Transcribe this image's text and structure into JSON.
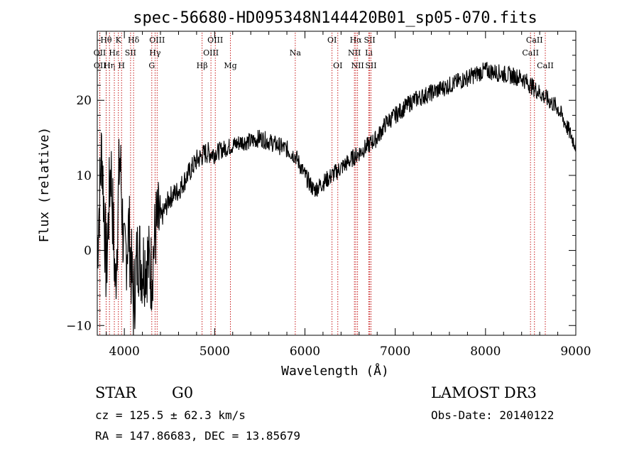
{
  "chart_data": {
    "type": "line",
    "title": "spec-56680-HD095348N144420B01_sp05-070.fits",
    "xlabel": "Wavelength (Å)",
    "ylabel": "Flux (relative)",
    "xlim": [
      3700,
      9000
    ],
    "ylim": [
      -11.3,
      29.2
    ],
    "xticks": [
      4000,
      5000,
      6000,
      7000,
      8000,
      9000
    ],
    "xtick_labels": [
      "4000",
      "5000",
      "6000",
      "7000",
      "8000",
      "9000"
    ],
    "yticks": [
      -10,
      0,
      10,
      20
    ],
    "ytick_labels": [
      "−10",
      "0",
      "10",
      "20"
    ],
    "series": [
      {
        "name": "spectrum",
        "x": [
          3700,
          3750,
          3800,
          3850,
          3900,
          3950,
          4000,
          4050,
          4100,
          4150,
          4200,
          4250,
          4300,
          4350,
          4400,
          4500,
          4600,
          4700,
          4800,
          4900,
          5000,
          5100,
          5200,
          5300,
          5400,
          5500,
          5600,
          5700,
          5800,
          5900,
          6000,
          6100,
          6200,
          6300,
          6400,
          6500,
          6600,
          6700,
          6800,
          6900,
          7000,
          7200,
          7400,
          7600,
          7800,
          8000,
          8200,
          8400,
          8600,
          8800,
          9000
        ],
        "values": [
          0,
          14,
          -3,
          12,
          -5,
          13,
          -2,
          3,
          -7,
          0,
          -2,
          -1,
          -3,
          3,
          4,
          7,
          8,
          10,
          12,
          13,
          13,
          13.5,
          14,
          14.5,
          14.5,
          15,
          14.5,
          14,
          13.5,
          12.5,
          10,
          8,
          9,
          10,
          11,
          12,
          13,
          14,
          15,
          17,
          18,
          20,
          21,
          22,
          23,
          24,
          23.5,
          23,
          21,
          19,
          14
        ]
      }
    ],
    "line_markers": [
      {
        "label": "Hθ",
        "wavelength": 3798,
        "row": 1
      },
      {
        "label": "OII",
        "wavelength": 3727,
        "row": 2
      },
      {
        "label": "OII",
        "wavelength": 3729,
        "row": 3
      },
      {
        "label": "Hη",
        "wavelength": 3835,
        "row": 3
      },
      {
        "label": "K",
        "wavelength": 3934,
        "row": 1
      },
      {
        "label": "Hε",
        "wavelength": 3889,
        "row": 2
      },
      {
        "label": "H",
        "wavelength": 3969,
        "row": 3
      },
      {
        "label": "SII",
        "wavelength": 4069,
        "row": 2
      },
      {
        "label": "Hδ",
        "wavelength": 4102,
        "row": 1
      },
      {
        "label": "OIII",
        "wavelength": 4363,
        "row": 1
      },
      {
        "label": "Hγ",
        "wavelength": 4340,
        "row": 2
      },
      {
        "label": "G",
        "wavelength": 4304,
        "row": 3
      },
      {
        "label": "Hβ",
        "wavelength": 4861,
        "row": 3
      },
      {
        "label": "OIII",
        "wavelength": 5007,
        "row": 1
      },
      {
        "label": "OIII",
        "wavelength": 4959,
        "row": 2
      },
      {
        "label": "Mg",
        "wavelength": 5175,
        "row": 3
      },
      {
        "label": "Na",
        "wavelength": 5893,
        "row": 2
      },
      {
        "label": "OI",
        "wavelength": 6300,
        "row": 1
      },
      {
        "label": "OI",
        "wavelength": 6364,
        "row": 3
      },
      {
        "label": "Hα",
        "wavelength": 6563,
        "row": 1
      },
      {
        "label": "NII",
        "wavelength": 6548,
        "row": 2
      },
      {
        "label": "NII",
        "wavelength": 6583,
        "row": 3
      },
      {
        "label": "SII",
        "wavelength": 6717,
        "row": 1
      },
      {
        "label": "Li",
        "wavelength": 6708,
        "row": 2
      },
      {
        "label": "SII",
        "wavelength": 6731,
        "row": 3
      },
      {
        "label": "CaII",
        "wavelength": 8542,
        "row": 1
      },
      {
        "label": "CaII",
        "wavelength": 8498,
        "row": 2
      },
      {
        "label": "CaII",
        "wavelength": 8662,
        "row": 3
      }
    ]
  },
  "info": {
    "class": "STAR",
    "subclass": "G0",
    "survey": "LAMOST DR3",
    "cz": "cz = 125.5 ± 62.3 km/s",
    "obs_date": "Obs-Date: 20140122",
    "coords": "RA = 147.86683, DEC =  13.85679"
  }
}
